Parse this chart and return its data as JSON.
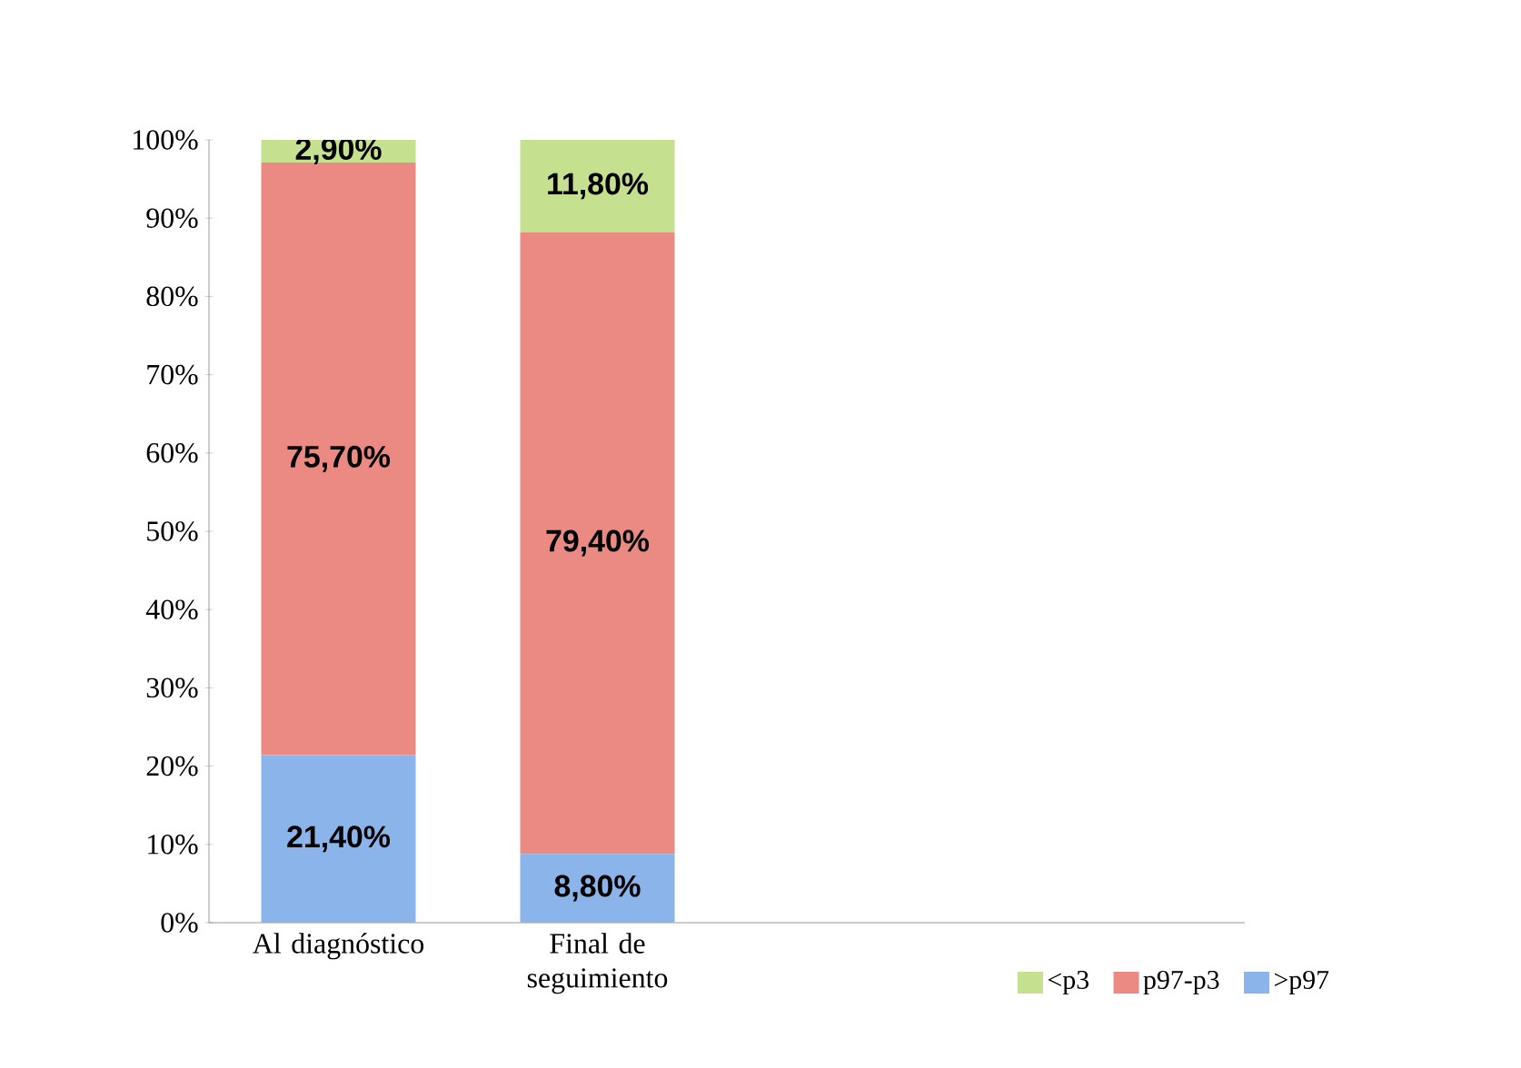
{
  "chart_data": {
    "type": "bar",
    "stacked": true,
    "categories": [
      "Al diagnóstico",
      "Final de seguimiento"
    ],
    "series": [
      {
        "name": ">p97",
        "color": "#8ab4ea",
        "values": [
          21.4,
          8.8
        ],
        "value_labels": [
          "21,40%",
          "8,80%"
        ]
      },
      {
        "name": "p97-p3",
        "color": "#eb8a82",
        "values": [
          75.7,
          79.4
        ],
        "value_labels": [
          "75,70%",
          "79,40%"
        ]
      },
      {
        "name": "<p3",
        "color": "#c5e08e",
        "values": [
          2.9,
          11.8
        ],
        "value_labels": [
          "2,90%",
          "11,80%"
        ]
      }
    ],
    "ylim": [
      0,
      100
    ],
    "yticks": [
      {
        "value": 0,
        "label": "0%"
      },
      {
        "value": 10,
        "label": "10%"
      },
      {
        "value": 20,
        "label": "20%"
      },
      {
        "value": 30,
        "label": "30%"
      },
      {
        "value": 40,
        "label": "40%"
      },
      {
        "value": 50,
        "label": "50%"
      },
      {
        "value": 60,
        "label": "60%"
      },
      {
        "value": 70,
        "label": "70%"
      },
      {
        "value": 80,
        "label": "80%"
      },
      {
        "value": 90,
        "label": "90%"
      },
      {
        "value": 100,
        "label": "100%"
      }
    ],
    "legend": "bottom right",
    "grid": false
  }
}
